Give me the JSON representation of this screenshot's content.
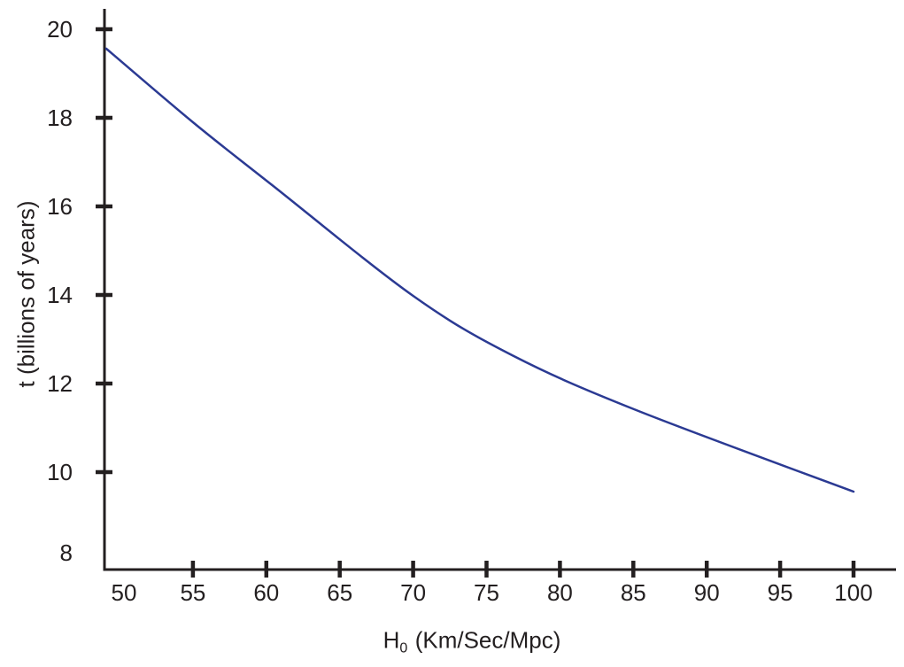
{
  "chart_data": {
    "type": "line",
    "title": "",
    "xlabel": {
      "base": "H",
      "sub": "0",
      "units": "(Km/Sec/Mpc)",
      "display": "H0 (Km/Sec/Mpc)"
    },
    "ylabel": "t (billions of years)",
    "x_axis": {
      "min": 48.9,
      "max": 102.9,
      "tick_marks": [
        55,
        60,
        65,
        70,
        75,
        80,
        85,
        90,
        95,
        100
      ],
      "tick_labels": [
        "50",
        "55",
        "60",
        "65",
        "70",
        "75",
        "80",
        "85",
        "90",
        "95",
        "100"
      ]
    },
    "y_axis": {
      "min": 7.8,
      "max": 20.5,
      "tick_marks": [
        20,
        18,
        16,
        14,
        12,
        10
      ],
      "tick_labels": [
        "20",
        "18",
        "16",
        "14",
        "12",
        "10",
        "8"
      ]
    },
    "grid": false,
    "legend": false,
    "series": [
      {
        "color": "#2b3a93",
        "stroke_width": 2.5,
        "points": [
          [
            49.1,
            19.56
          ],
          [
            55,
            17.9
          ],
          [
            60.4,
            16.48
          ],
          [
            70,
            13.98
          ],
          [
            76.8,
            12.63
          ],
          [
            85.2,
            11.4
          ],
          [
            100,
            9.56
          ]
        ]
      }
    ],
    "colors": {
      "axis": "#231f20",
      "text": "#231f20",
      "curve": "#2b3a93",
      "background": "#ffffff"
    }
  }
}
